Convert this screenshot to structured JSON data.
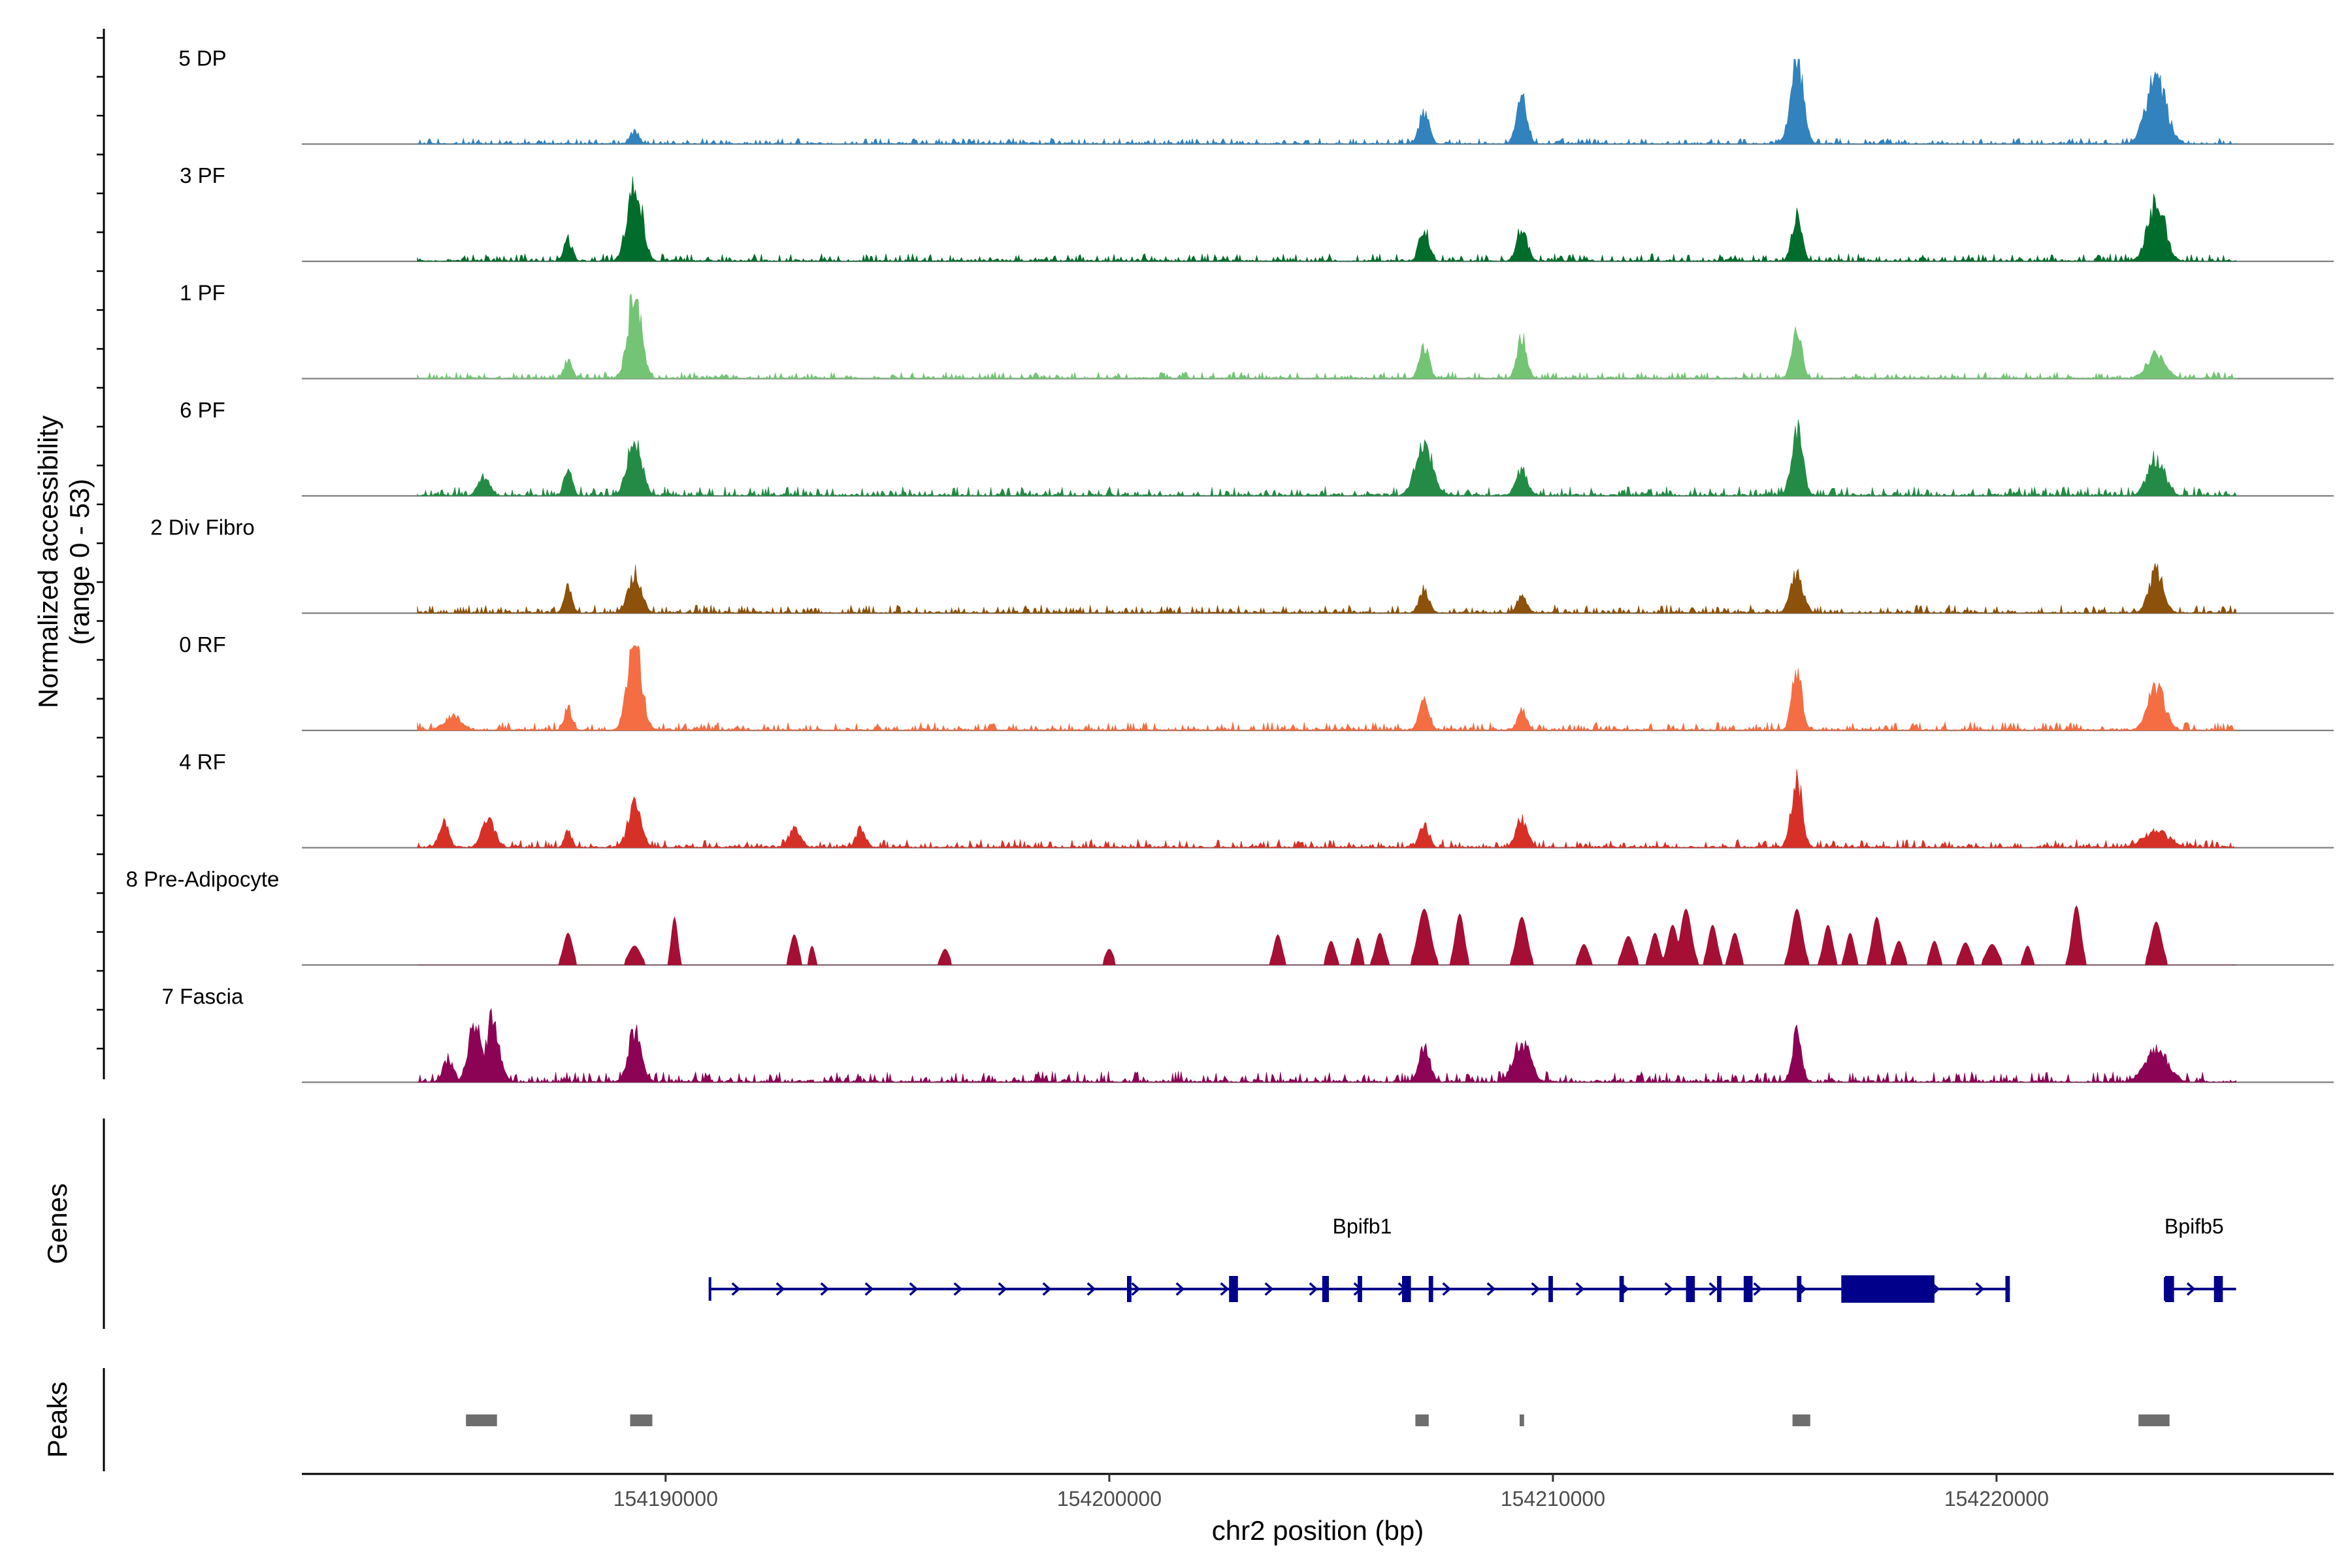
{
  "chart_data": {
    "type": "area",
    "title": "",
    "ylabel_lines": [
      "Normalized accessibility",
      "(range 0 - 53)"
    ],
    "y_range": [
      0,
      53
    ],
    "xlabel": "chr2 position (bp)",
    "x_range": [
      154181800,
      154227600
    ],
    "x_ticks": [
      154190000,
      154200000,
      154210000,
      154220000
    ],
    "x_tick_labels": [
      "154190000",
      "154200000",
      "154210000",
      "154220000"
    ],
    "data_start": 154184400,
    "data_end": 154225400,
    "tracks": [
      {
        "name": "5 DP",
        "color": "#3182bd",
        "noise": 0.07,
        "peaks": [
          [
            154189300,
            8,
            100
          ],
          [
            154207100,
            21,
            110
          ],
          [
            154209300,
            28,
            120
          ],
          [
            154215500,
            53,
            140
          ],
          [
            154223600,
            43,
            220
          ]
        ]
      },
      {
        "name": "3 PF",
        "color": "#006d2c",
        "noise": 0.09,
        "peaks": [
          [
            154187800,
            14,
            90
          ],
          [
            154189300,
            53,
            160
          ],
          [
            154207100,
            21,
            110
          ],
          [
            154209300,
            21,
            120
          ],
          [
            154215500,
            30,
            110
          ],
          [
            154223600,
            38,
            190
          ]
        ]
      },
      {
        "name": "1 PF",
        "color": "#74c476",
        "noise": 0.08,
        "peaks": [
          [
            154187800,
            12,
            90
          ],
          [
            154189300,
            53,
            150
          ],
          [
            154207100,
            20,
            110
          ],
          [
            154209300,
            26,
            110
          ],
          [
            154215500,
            33,
            110
          ],
          [
            154223600,
            15,
            220
          ]
        ]
      },
      {
        "name": "6 PF",
        "color": "#238b45",
        "noise": 0.11,
        "peaks": [
          [
            154185900,
            12,
            130
          ],
          [
            154187800,
            18,
            90
          ],
          [
            154189300,
            38,
            160
          ],
          [
            154207100,
            33,
            190
          ],
          [
            154209300,
            17,
            130
          ],
          [
            154215500,
            40,
            130
          ],
          [
            154223600,
            24,
            190
          ]
        ]
      },
      {
        "name": "2 Div Fibro",
        "color": "#8c510a",
        "noise": 0.1,
        "peaks": [
          [
            154187800,
            17,
            90
          ],
          [
            154189300,
            25,
            150
          ],
          [
            154207100,
            15,
            110
          ],
          [
            154209300,
            11,
            110
          ],
          [
            154215500,
            24,
            140
          ],
          [
            154223600,
            26,
            160
          ]
        ]
      },
      {
        "name": "0 RF",
        "color": "#f46d43",
        "noise": 0.1,
        "peaks": [
          [
            154185200,
            9,
            200
          ],
          [
            154187800,
            14,
            90
          ],
          [
            154189300,
            53,
            160
          ],
          [
            154207100,
            20,
            110
          ],
          [
            154209300,
            14,
            100
          ],
          [
            154215500,
            38,
            110
          ],
          [
            154223600,
            27,
            190
          ]
        ]
      },
      {
        "name": "4 RF",
        "color": "#d73027",
        "noise": 0.1,
        "peaks": [
          [
            154185000,
            16,
            110
          ],
          [
            154186000,
            18,
            150
          ],
          [
            154187800,
            11,
            80
          ],
          [
            154189300,
            26,
            150
          ],
          [
            154192900,
            11,
            140
          ],
          [
            154194400,
            12,
            110
          ],
          [
            154207100,
            14,
            110
          ],
          [
            154209300,
            18,
            130
          ],
          [
            154215500,
            43,
            120
          ],
          [
            154223600,
            10,
            300
          ]
        ]
      },
      {
        "name": "8 Pre-Adipocyte",
        "color": "#a50f33",
        "noise": 0.0,
        "sparse": true,
        "peaks": [
          [
            154187800,
            20,
            100
          ],
          [
            154189300,
            12,
            130
          ],
          [
            154190200,
            30,
            70
          ],
          [
            154192900,
            19,
            90
          ],
          [
            154193300,
            12,
            60
          ],
          [
            154196300,
            10,
            90
          ],
          [
            154200000,
            10,
            90
          ],
          [
            154203800,
            19,
            90
          ],
          [
            154205000,
            15,
            90
          ],
          [
            154205600,
            17,
            80
          ],
          [
            154206100,
            20,
            100
          ],
          [
            154207100,
            35,
            140
          ],
          [
            154207900,
            32,
            100
          ],
          [
            154209300,
            30,
            120
          ],
          [
            154210700,
            13,
            100
          ],
          [
            154211700,
            18,
            120
          ],
          [
            154212300,
            20,
            100
          ],
          [
            154212700,
            25,
            110
          ],
          [
            154213000,
            35,
            120
          ],
          [
            154213600,
            25,
            100
          ],
          [
            154214100,
            20,
            100
          ],
          [
            154215500,
            35,
            120
          ],
          [
            154216200,
            25,
            100
          ],
          [
            154216700,
            20,
            90
          ],
          [
            154217300,
            30,
            100
          ],
          [
            154217800,
            15,
            100
          ],
          [
            154218600,
            15,
            90
          ],
          [
            154219300,
            14,
            110
          ],
          [
            154219900,
            13,
            130
          ],
          [
            154220700,
            12,
            80
          ],
          [
            154221800,
            37,
            100
          ],
          [
            154223600,
            27,
            120
          ]
        ]
      },
      {
        "name": "7 Fascia",
        "color": "#8c0254",
        "noise": 0.13,
        "peaks": [
          [
            154185100,
            15,
            120
          ],
          [
            154185700,
            37,
            150
          ],
          [
            154186100,
            40,
            150
          ],
          [
            154189300,
            31,
            150
          ],
          [
            154207100,
            22,
            130
          ],
          [
            154209300,
            25,
            190
          ],
          [
            154215500,
            29,
            110
          ],
          [
            154223600,
            20,
            260
          ]
        ]
      }
    ],
    "genes": [
      {
        "name": "Bpifb1",
        "strand": "+",
        "start": 154191000,
        "end": 154220300,
        "exons": [
          [
            154200400,
            154200500
          ],
          [
            154202700,
            154202900
          ],
          [
            154204800,
            154204950
          ],
          [
            154205600,
            154205700
          ],
          [
            154206600,
            154206800
          ],
          [
            154207200,
            154207300
          ],
          [
            154209900,
            154210000
          ],
          [
            154211500,
            154211600
          ],
          [
            154213000,
            154213200
          ],
          [
            154213700,
            154213800
          ],
          [
            154214300,
            154214500
          ],
          [
            154215500,
            154215600
          ],
          [
            154216500,
            154218600
          ],
          [
            154220200,
            154220300
          ]
        ]
      },
      {
        "name": "Bpifb5",
        "strand": "+",
        "start": 154223800,
        "end": 154225400,
        "exons": [
          [
            154223800,
            154224000
          ],
          [
            154224900,
            154225100
          ]
        ]
      }
    ],
    "peaks_track": {
      "label": "Peaks",
      "regions": [
        [
          154185500,
          154186200
        ],
        [
          154189200,
          154189700
        ],
        [
          154206900,
          154207200
        ],
        [
          154209250,
          154209350
        ],
        [
          154215400,
          154215800
        ],
        [
          154223200,
          154223900
        ]
      ]
    },
    "genes_track_label": "Genes"
  }
}
